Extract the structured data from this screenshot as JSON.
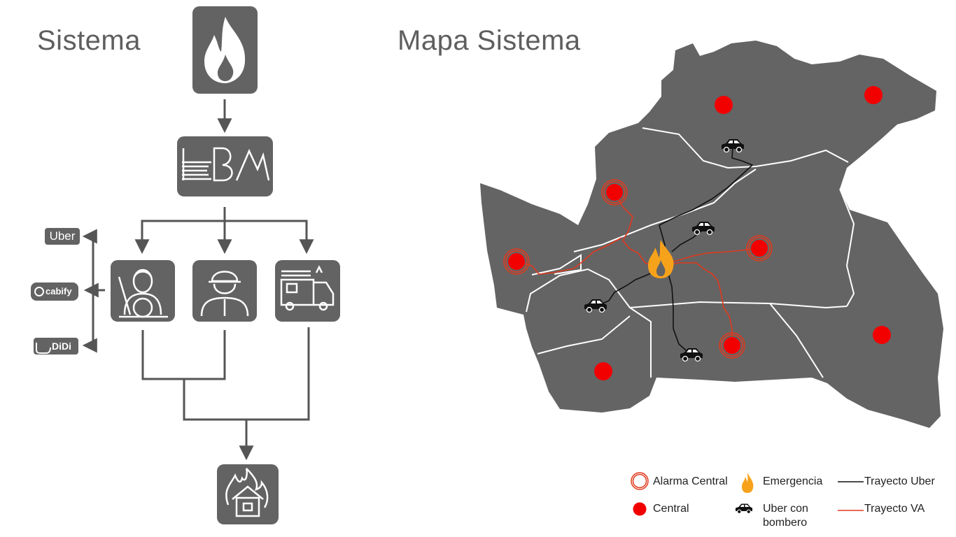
{
  "titles": {
    "system": "Sistema",
    "map": "Mapa Sistema"
  },
  "flow": {
    "top_icon": "fire-icon",
    "cbm_logo_text": "CBM",
    "rideshare": {
      "uber": "Uber",
      "cabify": "cabify",
      "didi": "DiDi"
    },
    "nodes": [
      {
        "icon": "driver-icon"
      },
      {
        "icon": "firefighter-icon"
      },
      {
        "icon": "fire-truck-icon"
      }
    ],
    "bottom_icon": "burning-house-icon"
  },
  "legend": {
    "alarma_central": "Alarma Central",
    "emergencia": "Emergencia",
    "trayecto_uber": "Trayecto Uber",
    "central": "Central",
    "uber_bombero_1": "Uber con",
    "uber_bombero_2": "bombero",
    "trayecto_va": "Trayecto VA"
  },
  "colors": {
    "tile": "#636363",
    "map": "#646464",
    "central": "#f20000",
    "fire": "#f7a21b",
    "uber_route": "#111111",
    "va_route": "#e03a1e",
    "arrow": "#555555"
  }
}
